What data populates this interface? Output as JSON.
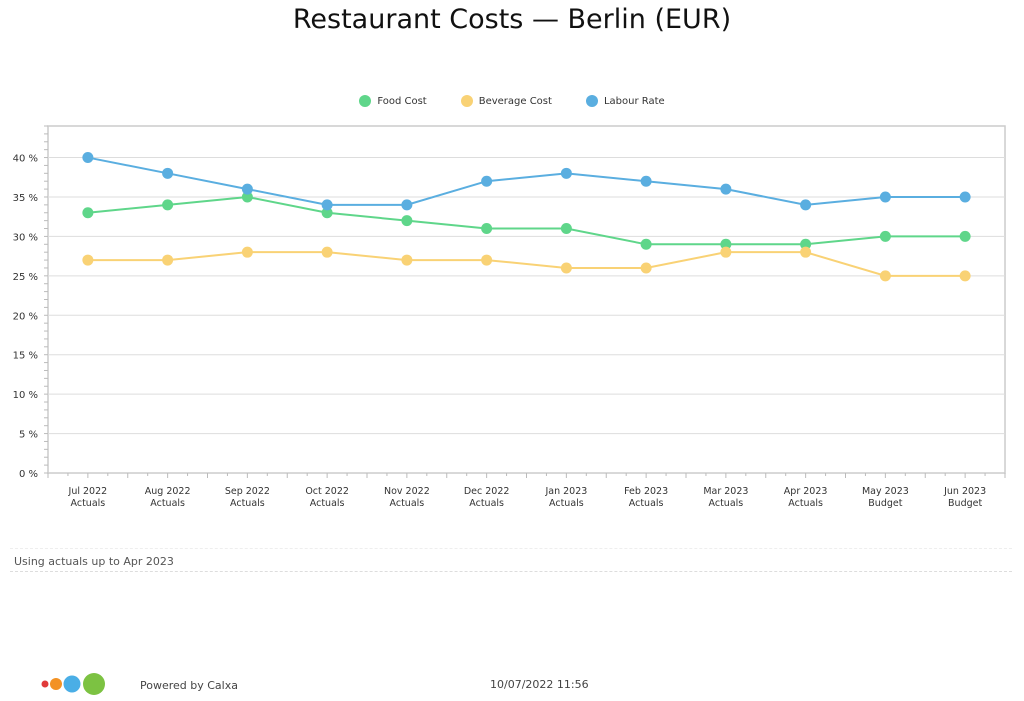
{
  "chart_data": {
    "type": "line",
    "title": "Restaurant Costs — Berlin (EUR)",
    "categories": [
      [
        "Jul 2022",
        "Actuals"
      ],
      [
        "Aug 2022",
        "Actuals"
      ],
      [
        "Sep 2022",
        "Actuals"
      ],
      [
        "Oct 2022",
        "Actuals"
      ],
      [
        "Nov 2022",
        "Actuals"
      ],
      [
        "Dec 2022",
        "Actuals"
      ],
      [
        "Jan 2023",
        "Actuals"
      ],
      [
        "Feb 2023",
        "Actuals"
      ],
      [
        "Mar 2023",
        "Actuals"
      ],
      [
        "Apr 2023",
        "Actuals"
      ],
      [
        "May 2023",
        "Budget"
      ],
      [
        "Jun 2023",
        "Budget"
      ]
    ],
    "series": [
      {
        "name": "Food Cost",
        "color": "#5fd68a",
        "values": [
          33,
          34,
          35,
          33,
          32,
          31,
          31,
          29,
          29,
          29,
          30,
          30
        ]
      },
      {
        "name": "Beverage Cost",
        "color": "#f9d275",
        "values": [
          27,
          27,
          28,
          28,
          27,
          27,
          26,
          26,
          28,
          28,
          25,
          25
        ]
      },
      {
        "name": "Labour Rate",
        "color": "#5aaee0",
        "values": [
          40,
          38,
          36,
          34,
          34,
          37,
          38,
          37,
          36,
          34,
          35,
          35
        ]
      }
    ],
    "yticks": [
      "0 %",
      "5 %",
      "10 %",
      "15 %",
      "20 %",
      "25 %",
      "30 %",
      "35 %",
      "40 %"
    ],
    "ylim": [
      0,
      44
    ],
    "xlabel": "",
    "ylabel": "",
    "grid": true,
    "legend_position": "top-center"
  },
  "note": "Using actuals up to Apr 2023",
  "footer": {
    "powered": "Powered by Calxa",
    "timestamp": "10/07/2022 11:56",
    "logo_colors": [
      "#e03a3a",
      "#f39224",
      "#4aaee6",
      "#7cc242"
    ]
  }
}
